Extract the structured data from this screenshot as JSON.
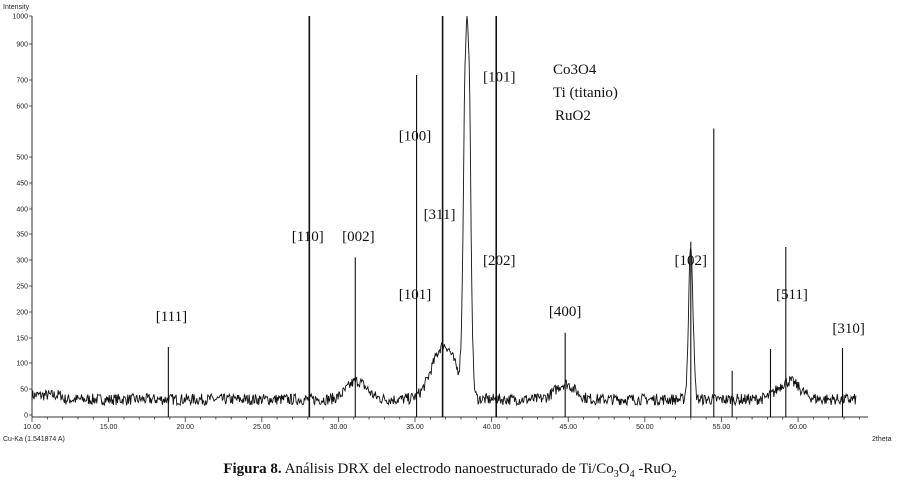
{
  "chart_data": {
    "type": "line",
    "ylabel": "Intensity",
    "xlabel": "2theta",
    "source_label": "Cu-Ka (1.541874 A)",
    "xlim": [
      10,
      64.5
    ],
    "x_ticks": [
      "10.00",
      "15.00",
      "20.00",
      "25.00",
      "30.00",
      "35.00",
      "40.00",
      "45.00",
      "50.00",
      "55.00",
      "60.00"
    ],
    "y_ticks": [
      "1000",
      "900",
      "700",
      "600",
      "500",
      "450",
      "400",
      "350",
      "300",
      "250",
      "200",
      "150",
      "100",
      "50",
      "0"
    ],
    "legend": [
      "Co3O4",
      "Ti (titanio)",
      "RuO2"
    ],
    "background_level": 30,
    "broad_peaks": [
      {
        "x": 31.2,
        "height": 35,
        "width": 0.9
      },
      {
        "x": 36.9,
        "height": 105,
        "width": 1.1
      },
      {
        "x": 38.4,
        "height": 960,
        "width": 0.25
      },
      {
        "x": 44.8,
        "height": 30,
        "width": 0.9
      },
      {
        "x": 53.0,
        "height": 300,
        "width": 0.2
      },
      {
        "x": 59.4,
        "height": 35,
        "width": 1.0
      }
    ],
    "stick_lines": [
      {
        "x": 18.9,
        "top": 132
      },
      {
        "x": 28.1,
        "top": 1000
      },
      {
        "x": 31.1,
        "top": 305
      },
      {
        "x": 35.1,
        "top": 720
      },
      {
        "x": 36.8,
        "top": 1000
      },
      {
        "x": 40.3,
        "top": 1000
      },
      {
        "x": 44.8,
        "top": 160
      },
      {
        "x": 53.0,
        "top": 335
      },
      {
        "x": 54.5,
        "top": 555
      },
      {
        "x": 55.7,
        "top": 85
      },
      {
        "x": 58.2,
        "top": 128
      },
      {
        "x": 59.2,
        "top": 325
      },
      {
        "x": 62.9,
        "top": 130
      }
    ],
    "annotations": [
      {
        "label": "[111]",
        "x": 19.1,
        "y": 183
      },
      {
        "label": "[110]",
        "x": 28.0,
        "y": 337
      },
      {
        "label": "[002]",
        "x": 31.3,
        "y": 337
      },
      {
        "label": "[100]",
        "x": 35.0,
        "y": 532
      },
      {
        "label": "[311]",
        "x": 36.6,
        "y": 380
      },
      {
        "label": "[101]",
        "x": 35.0,
        "y": 225
      },
      {
        "label": "[101]",
        "x": 40.5,
        "y": 695
      },
      {
        "label": "[202]",
        "x": 40.5,
        "y": 290
      },
      {
        "label": "[400]",
        "x": 44.8,
        "y": 192
      },
      {
        "label": "[102]",
        "x": 53.0,
        "y": 290
      },
      {
        "label": "[511]",
        "x": 59.6,
        "y": 225
      },
      {
        "label": "[310]",
        "x": 63.3,
        "y": 160
      }
    ]
  },
  "caption": {
    "bold": "Figura 8.",
    "text": "Análisis DRX del electrodo nanoestructurado de Ti/Co",
    "sub1": "3",
    "text2": "O",
    "sub2": "4",
    "text3": " -RuO",
    "sub3": "2"
  }
}
